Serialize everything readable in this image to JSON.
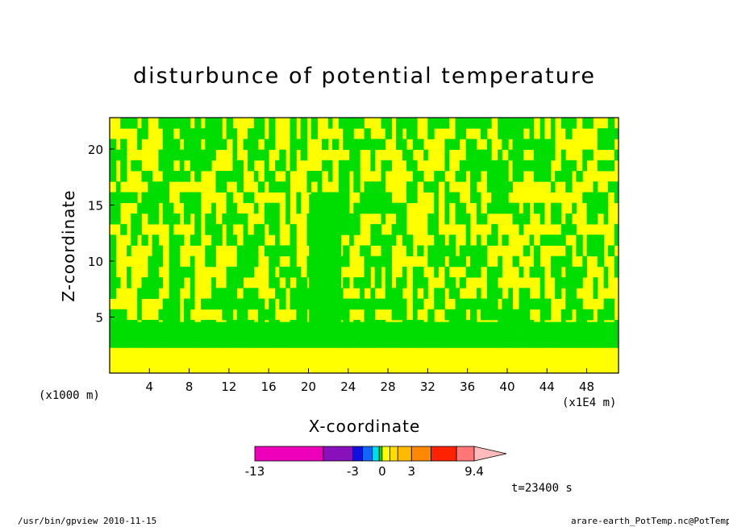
{
  "chart_data": {
    "type": "heatmap",
    "title": "disturbunce of potential temperature",
    "xlabel": "X-coordinate",
    "ylabel": "Z-coordinate",
    "x_ticks": [
      "4",
      "8",
      "12",
      "16",
      "20",
      "24",
      "28",
      "32",
      "36",
      "40",
      "44",
      "48"
    ],
    "x_tick_values": [
      4,
      8,
      12,
      16,
      20,
      24,
      28,
      32,
      36,
      40,
      44,
      48
    ],
    "y_ticks": [
      "5",
      "10",
      "15",
      "20"
    ],
    "y_tick_values": [
      5,
      10,
      15,
      20
    ],
    "xlim": [
      0,
      51.2
    ],
    "ylim": [
      0,
      22.8
    ],
    "x_unit_label": "(x1000 m)",
    "x_offset_label": "(x1E4 m)",
    "colorbar": {
      "labels": [
        "-13",
        "-3",
        "0",
        "3",
        "9.4"
      ],
      "label_values": [
        -13,
        -3,
        0,
        3,
        9.4
      ],
      "colors": [
        "#ee00bb",
        "#8811bb",
        "#1111dd",
        "#1166ff",
        "#00ddee",
        "#00dd00",
        "#ffff00",
        "#ffdd00",
        "#ffbb00",
        "#ff8800",
        "#ff2200",
        "#ff7777",
        "#ffbbbb"
      ],
      "triangle_upper": true
    },
    "dominant_colors": {
      "negative_small": "#00ee00",
      "positive_small": "#ffff00"
    }
  },
  "annotations": {
    "time": "t=23400 s",
    "footer_left": "/usr/bin/gpview  2010-11-15",
    "footer_right": "arare-earth_PotTemp.nc@PotTemp"
  }
}
